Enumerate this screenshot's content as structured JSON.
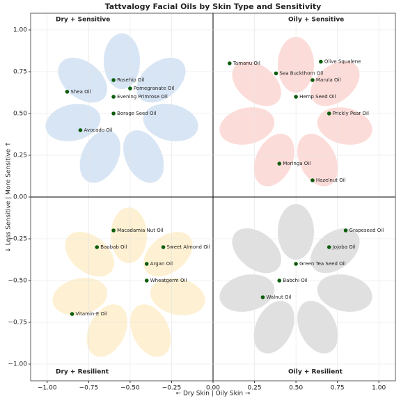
{
  "chart_data": {
    "type": "scatter",
    "title": "Tattvalogy Facial Oils by Skin Type and Sensitivity",
    "xlabel": "← Dry Skin   |   Oily Skin →",
    "ylabel": "↓ Less Sensitive   |   More Sensitive ↑",
    "point_labels": [
      "Shea Oil",
      "Rosehip Oil",
      "Pomegranate Oil",
      "Evening Primrose Oil",
      "Borage Seed Oil",
      "Avocado Oil",
      "Tamanu Oil",
      "Olive Squalene",
      "Sea Buckthorn Oil",
      "Marula Oil",
      "Hemp Seed Oil",
      "Prickly Pear Oil",
      "Moringa Oil",
      "Hazelnut Oil",
      "Macadamia Nut Oil",
      "Baobab Oil",
      "Sweet Almond Oil",
      "Argan Oil",
      "Wheatgerm Oil",
      "Vitamin-E Oil",
      "Grapeseed Oil",
      "Jojoba Oil",
      "Green Tea Seed Oil",
      "Babchi Oil",
      "Walnut Oil"
    ],
    "x": [
      -0.88,
      -0.6,
      -0.5,
      -0.6,
      -0.6,
      -0.8,
      0.1,
      0.65,
      0.38,
      0.6,
      0.5,
      0.7,
      0.4,
      0.6,
      -0.6,
      -0.7,
      -0.3,
      -0.4,
      -0.4,
      -0.85,
      0.8,
      0.7,
      0.5,
      0.4,
      0.3
    ],
    "y": [
      0.63,
      0.7,
      0.65,
      0.6,
      0.5,
      0.4,
      0.8,
      0.81,
      0.74,
      0.7,
      0.6,
      0.5,
      0.2,
      0.1,
      -0.2,
      -0.3,
      -0.3,
      -0.4,
      -0.5,
      -0.7,
      -0.2,
      -0.3,
      -0.4,
      -0.5,
      -0.6
    ],
    "color": "#0b5d0b",
    "xlim": [
      -1.1,
      1.1
    ],
    "ylim": [
      -1.1,
      1.1
    ],
    "xticks": [
      {
        "value": -1,
        "label": "−1.00"
      },
      {
        "value": -0.75,
        "label": "−0.75"
      },
      {
        "value": -0.5,
        "label": "−0.50"
      },
      {
        "value": -0.25,
        "label": "−0.25"
      },
      {
        "value": 0,
        "label": "0.00"
      },
      {
        "value": 0.25,
        "label": "0.25"
      },
      {
        "value": 0.5,
        "label": "0.50"
      },
      {
        "value": 0.75,
        "label": "0.75"
      },
      {
        "value": 1,
        "label": "1.00"
      }
    ],
    "yticks": [
      {
        "value": -1,
        "label": "−1.00"
      },
      {
        "value": -0.75,
        "label": "−0.75"
      },
      {
        "value": -0.5,
        "label": "−0.50"
      },
      {
        "value": -0.25,
        "label": "−0.25"
      },
      {
        "value": 0,
        "label": "0.00"
      },
      {
        "value": 0.25,
        "label": "0.25"
      },
      {
        "value": 0.5,
        "label": "0.50"
      },
      {
        "value": 0.75,
        "label": "0.75"
      },
      {
        "value": 1,
        "label": "1.00"
      }
    ],
    "grid": true,
    "quadrants": [
      {
        "label": "Dry + Sensitive",
        "color": "#c9dcf0"
      },
      {
        "label": "Oily + Sensitive",
        "color": "#fbd0cc"
      },
      {
        "label": "Dry + Resilient",
        "color": "#fdecc4"
      },
      {
        "label": "Oily + Resilient",
        "color": "#d5d5d5"
      }
    ]
  }
}
